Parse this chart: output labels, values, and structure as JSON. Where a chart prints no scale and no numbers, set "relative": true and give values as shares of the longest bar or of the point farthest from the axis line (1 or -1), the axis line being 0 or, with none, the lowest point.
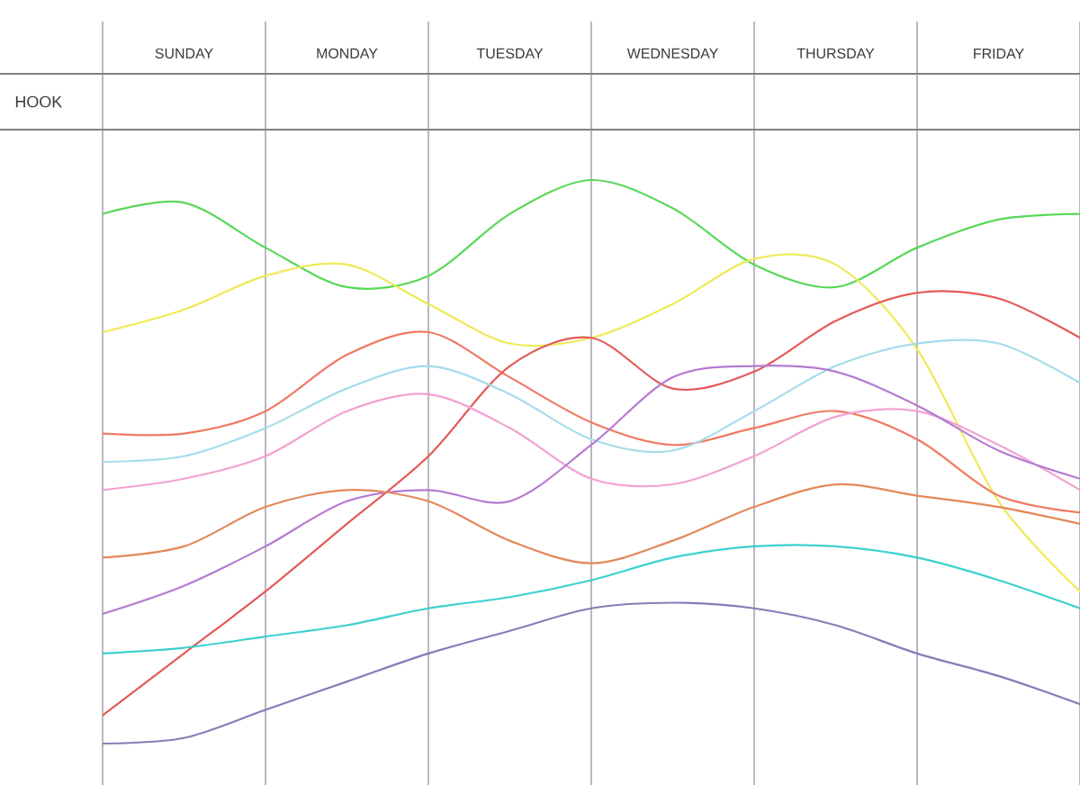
{
  "chart_data": {
    "type": "line",
    "relative": true,
    "grid": "x",
    "categories": [
      null,
      "SUNDAY",
      null,
      "MONDAY",
      null,
      "TUESDAY",
      null,
      "WEDNESDAY",
      null,
      "THURSDAY",
      null,
      "FRIDAY",
      null
    ],
    "annotations": [
      "HOOK"
    ],
    "series": [
      {
        "color": "#5ad85a",
        "values": [
          0.94,
          0.96,
          0.88,
          0.81,
          0.83,
          0.94,
          1.0,
          0.95,
          0.85,
          0.81,
          0.88,
          0.93,
          0.94
        ]
      },
      {
        "color": "#eeea55",
        "values": [
          0.73,
          0.77,
          0.83,
          0.85,
          0.78,
          0.71,
          0.72,
          0.78,
          0.86,
          0.85,
          0.7,
          0.43,
          0.27
        ]
      },
      {
        "color": "#f07a62",
        "values": [
          0.55,
          0.55,
          0.59,
          0.69,
          0.73,
          0.65,
          0.57,
          0.53,
          0.56,
          0.59,
          0.54,
          0.44,
          0.41
        ]
      },
      {
        "color": "#e45a5a",
        "values": [
          0.05,
          0.16,
          0.27,
          0.39,
          0.51,
          0.67,
          0.72,
          0.63,
          0.66,
          0.75,
          0.8,
          0.79,
          0.72
        ]
      },
      {
        "color": "#a6dcea",
        "values": [
          0.5,
          0.51,
          0.56,
          0.63,
          0.67,
          0.62,
          0.54,
          0.52,
          0.59,
          0.67,
          0.71,
          0.71,
          0.64
        ]
      },
      {
        "color": "#f2a2d2",
        "values": [
          0.45,
          0.47,
          0.51,
          0.59,
          0.62,
          0.56,
          0.47,
          0.46,
          0.51,
          0.58,
          0.59,
          0.53,
          0.45
        ]
      },
      {
        "color": "#b67ad2",
        "values": [
          0.23,
          0.28,
          0.35,
          0.43,
          0.45,
          0.43,
          0.53,
          0.65,
          0.67,
          0.66,
          0.6,
          0.52,
          0.47
        ]
      },
      {
        "color": "#e4885a",
        "values": [
          0.33,
          0.35,
          0.42,
          0.45,
          0.43,
          0.36,
          0.32,
          0.36,
          0.42,
          0.46,
          0.44,
          0.42,
          0.39
        ]
      },
      {
        "color": "#3cd0d0",
        "values": [
          0.16,
          0.17,
          0.19,
          0.21,
          0.24,
          0.26,
          0.29,
          0.33,
          0.35,
          0.35,
          0.33,
          0.29,
          0.24
        ]
      },
      {
        "color": "#8a7ab8",
        "values": [
          0.0,
          0.01,
          0.06,
          0.11,
          0.16,
          0.2,
          0.24,
          0.25,
          0.24,
          0.21,
          0.16,
          0.12,
          0.07
        ]
      }
    ]
  }
}
